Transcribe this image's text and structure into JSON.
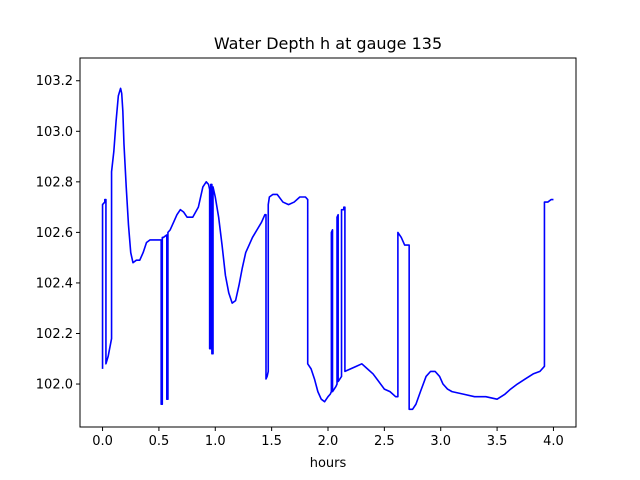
{
  "chart_data": {
    "type": "line",
    "title": "Water Depth h at gauge 135",
    "xlabel": "hours",
    "ylabel": "",
    "xlim": [
      -0.2,
      4.2
    ],
    "ylim": [
      101.83,
      103.29
    ],
    "xticks": [
      0.0,
      0.5,
      1.0,
      1.5,
      2.0,
      2.5,
      3.0,
      3.5,
      4.0
    ],
    "xtick_labels": [
      "0.0",
      "0.5",
      "1.0",
      "1.5",
      "2.0",
      "2.5",
      "3.0",
      "3.5",
      "4.0"
    ],
    "yticks": [
      102.0,
      102.2,
      102.4,
      102.6,
      102.8,
      103.0,
      103.2
    ],
    "ytick_labels": [
      "102.0",
      "102.2",
      "102.4",
      "102.6",
      "102.8",
      "103.0",
      "103.2"
    ],
    "grid": false,
    "series": [
      {
        "color": "#0000ff",
        "x": [
          0.0,
          0.0,
          0.02,
          0.02,
          0.03,
          0.03,
          0.05,
          0.08,
          0.08,
          0.1,
          0.12,
          0.14,
          0.16,
          0.17,
          0.18,
          0.19,
          0.21,
          0.23,
          0.25,
          0.27,
          0.3,
          0.33,
          0.36,
          0.39,
          0.42,
          0.45,
          0.48,
          0.51,
          0.52,
          0.52,
          0.53,
          0.53,
          0.54,
          0.57,
          0.57,
          0.58,
          0.58,
          0.6,
          0.63,
          0.66,
          0.69,
          0.72,
          0.75,
          0.8,
          0.85,
          0.89,
          0.92,
          0.94,
          0.95,
          0.95,
          0.96,
          0.96,
          0.97,
          0.97,
          0.98,
          0.98,
          1.0,
          1.03,
          1.06,
          1.09,
          1.12,
          1.15,
          1.18,
          1.21,
          1.24,
          1.27,
          1.3,
          1.33,
          1.37,
          1.41,
          1.44,
          1.45,
          1.45,
          1.46,
          1.47,
          1.47,
          1.48,
          1.51,
          1.55,
          1.6,
          1.65,
          1.7,
          1.75,
          1.8,
          1.82,
          1.82,
          1.85,
          1.88,
          1.91,
          1.94,
          1.97,
          2.0,
          2.02,
          2.03,
          2.03,
          2.04,
          2.04,
          2.07,
          2.08,
          2.08,
          2.09,
          2.09,
          2.12,
          2.12,
          2.14,
          2.14,
          2.15,
          2.15,
          2.2,
          2.25,
          2.3,
          2.35,
          2.4,
          2.45,
          2.5,
          2.55,
          2.6,
          2.62,
          2.62,
          2.65,
          2.68,
          2.7,
          2.72,
          2.72,
          2.75,
          2.78,
          2.82,
          2.87,
          2.91,
          2.95,
          2.99,
          3.02,
          3.06,
          3.1,
          3.2,
          3.3,
          3.4,
          3.5,
          3.57,
          3.62,
          3.68,
          3.75,
          3.82,
          3.88,
          3.92,
          3.92,
          3.95,
          3.98,
          4.0
        ],
        "y": [
          102.06,
          102.71,
          102.72,
          102.73,
          102.73,
          102.08,
          102.11,
          102.18,
          102.84,
          102.92,
          103.04,
          103.14,
          103.17,
          103.15,
          103.08,
          102.95,
          102.78,
          102.63,
          102.52,
          102.48,
          102.49,
          102.49,
          102.52,
          102.56,
          102.57,
          102.57,
          102.57,
          102.57,
          102.57,
          101.92,
          101.92,
          102.58,
          102.58,
          102.59,
          101.94,
          101.94,
          102.6,
          102.61,
          102.64,
          102.67,
          102.69,
          102.68,
          102.66,
          102.66,
          102.7,
          102.78,
          102.8,
          102.79,
          102.77,
          102.14,
          102.14,
          102.79,
          102.79,
          102.12,
          102.12,
          102.78,
          102.74,
          102.66,
          102.55,
          102.43,
          102.36,
          102.32,
          102.33,
          102.39,
          102.46,
          102.52,
          102.55,
          102.58,
          102.61,
          102.64,
          102.67,
          102.67,
          102.02,
          102.03,
          102.05,
          102.71,
          102.74,
          102.75,
          102.75,
          102.72,
          102.71,
          102.72,
          102.74,
          102.74,
          102.73,
          102.08,
          102.06,
          102.02,
          101.97,
          101.94,
          101.93,
          101.95,
          101.96,
          101.97,
          102.6,
          102.61,
          101.97,
          101.99,
          102.0,
          102.66,
          102.67,
          102.01,
          102.03,
          102.69,
          102.69,
          102.7,
          102.7,
          102.05,
          102.06,
          102.07,
          102.08,
          102.06,
          102.04,
          102.01,
          101.98,
          101.97,
          101.95,
          101.95,
          102.6,
          102.58,
          102.55,
          102.55,
          102.55,
          101.9,
          101.9,
          101.92,
          101.97,
          102.03,
          102.05,
          102.05,
          102.03,
          102.0,
          101.98,
          101.97,
          101.96,
          101.95,
          101.95,
          101.94,
          101.96,
          101.98,
          102.0,
          102.02,
          102.04,
          102.05,
          102.07,
          102.72,
          102.72,
          102.73,
          102.73
        ]
      }
    ]
  }
}
